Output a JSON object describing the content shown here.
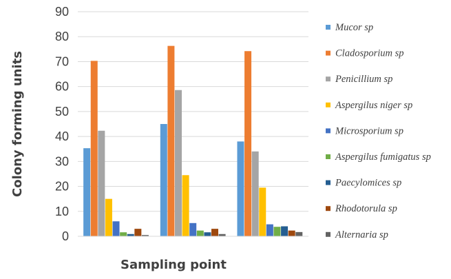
{
  "chart_data": {
    "type": "bar",
    "categories": [
      "",
      "",
      ""
    ],
    "xlabel": "Sampling point",
    "ylabel": "Colony forming units",
    "ylim": [
      0,
      90
    ],
    "yticks": [
      0,
      10,
      20,
      30,
      40,
      50,
      60,
      70,
      80,
      90
    ],
    "grid": true,
    "legend": "right",
    "series": [
      {
        "name": "Mucor sp",
        "color": "#5B9BD5",
        "values": [
          35.3,
          45.0,
          38.0
        ]
      },
      {
        "name": "Cladosporium sp",
        "color": "#ED7D31",
        "values": [
          70.3,
          76.3,
          74.2
        ]
      },
      {
        "name": "Penicillium sp",
        "color": "#A5A5A5",
        "values": [
          42.3,
          58.6,
          34.0
        ]
      },
      {
        "name": "Aspergilus niger sp",
        "color": "#FFC000",
        "values": [
          15.0,
          24.5,
          19.5
        ]
      },
      {
        "name": "Microsporium sp",
        "color": "#4472C4",
        "values": [
          6.0,
          5.3,
          4.8
        ]
      },
      {
        "name": "Aspergilus fumigatus sp",
        "color": "#70AD47",
        "values": [
          1.6,
          2.3,
          3.8
        ]
      },
      {
        "name": "Paecylomices sp",
        "color": "#255E91",
        "values": [
          0.9,
          1.6,
          4.0
        ]
      },
      {
        "name": "Rhodotorula sp",
        "color": "#9E480E",
        "values": [
          3.0,
          3.0,
          2.3
        ]
      },
      {
        "name": "Alternaria sp",
        "color": "#636363",
        "values": [
          0.5,
          0.9,
          1.7
        ]
      }
    ]
  }
}
